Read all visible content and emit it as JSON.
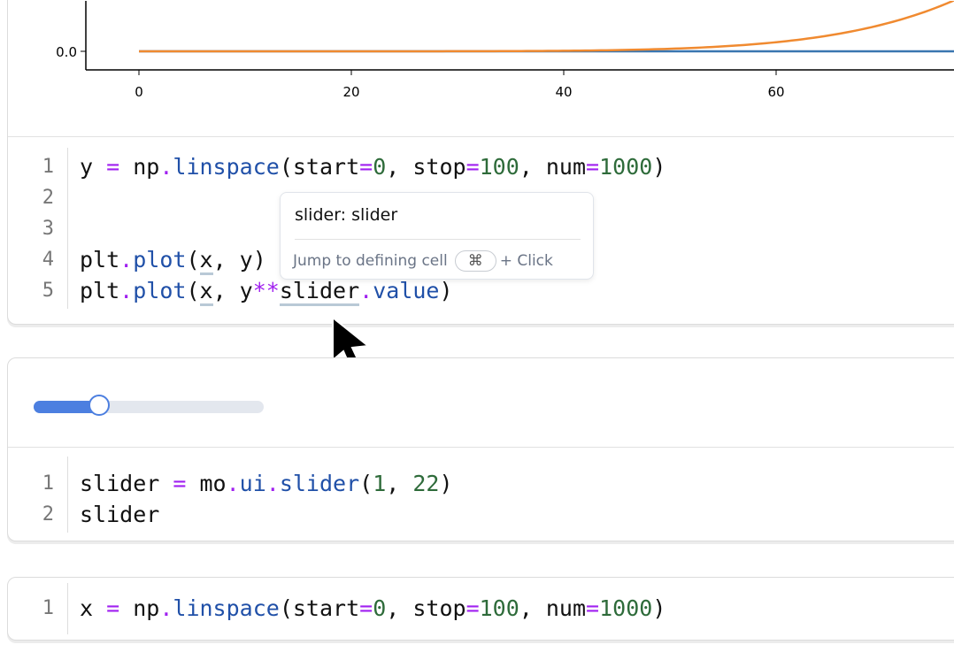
{
  "chart_data": {
    "type": "line",
    "x_ticks": [
      "0",
      "20",
      "40",
      "60"
    ],
    "y_ticks": [
      "0.0"
    ],
    "xlim": [
      -5,
      78
    ],
    "series": [
      {
        "expr": "y",
        "color": "#3a76b0"
      },
      {
        "expr": "y**slider.value",
        "color": "#f08a30"
      }
    ]
  },
  "cell1": {
    "lines": [
      "1",
      "2",
      "3",
      "4",
      "5"
    ]
  },
  "tooltip": {
    "title": "slider: slider",
    "hint": "Jump to defining cell",
    "key": "⌘",
    "suffix": "+ Click"
  },
  "slider": {
    "min": 1,
    "max": 22,
    "value": 7,
    "accent": "#4c7fe0"
  },
  "cell2": {
    "lines": [
      "1",
      "2"
    ]
  },
  "cell3": {
    "lines": [
      "1"
    ]
  }
}
